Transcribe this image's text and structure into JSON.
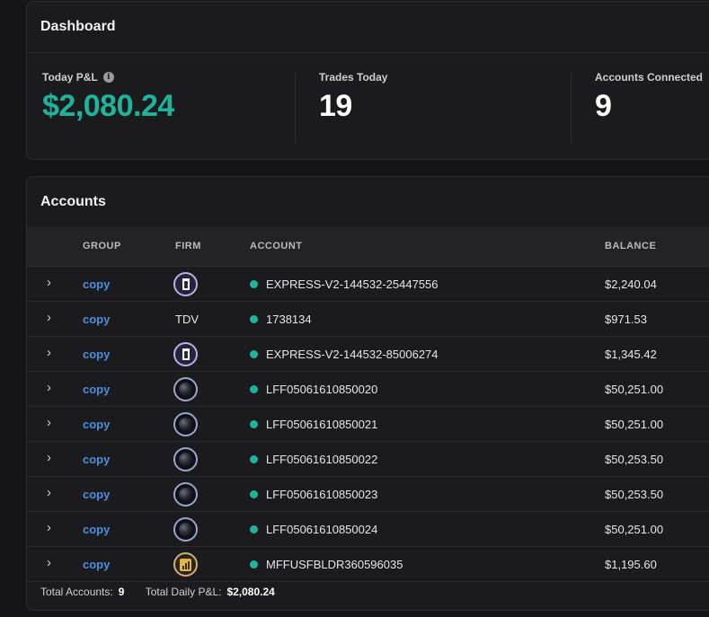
{
  "dashboard": {
    "title": "Dashboard",
    "today_pnl": {
      "label": "Today P&L",
      "value": "$2,080.24"
    },
    "trades_today": {
      "label": "Trades Today",
      "value": "19"
    },
    "accounts_connected": {
      "label": "Accounts Connected",
      "value": "9"
    }
  },
  "accounts": {
    "title": "Accounts",
    "columns": {
      "group": "GROUP",
      "firm": "FIRM",
      "account": "ACCOUNT",
      "balance": "BALANCE"
    },
    "rows": [
      {
        "group": "copy",
        "firm_icon": "x-shield-logo",
        "account": "EXPRESS-V2-144532-25447556",
        "balance": "$2,240.04"
      },
      {
        "group": "copy",
        "firm_text": "TDV",
        "account": "1738134",
        "balance": "$971.53"
      },
      {
        "group": "copy",
        "firm_icon": "x-shield-logo",
        "account": "EXPRESS-V2-144532-85006274",
        "balance": "$1,345.42"
      },
      {
        "group": "copy",
        "firm_icon": "black-sphere-logo",
        "account": "LFF05061610850020",
        "balance": "$50,251.00"
      },
      {
        "group": "copy",
        "firm_icon": "black-sphere-logo",
        "account": "LFF05061610850021",
        "balance": "$50,251.00"
      },
      {
        "group": "copy",
        "firm_icon": "black-sphere-logo",
        "account": "LFF05061610850022",
        "balance": "$50,253.50"
      },
      {
        "group": "copy",
        "firm_icon": "black-sphere-logo",
        "account": "LFF05061610850023",
        "balance": "$50,253.50"
      },
      {
        "group": "copy",
        "firm_icon": "black-sphere-logo",
        "account": "LFF05061610850024",
        "balance": "$50,251.00"
      },
      {
        "group": "copy",
        "firm_icon": "gold-chart-logo",
        "account": "MFFUSFBLDR360596035",
        "balance": "$1,195.60"
      }
    ],
    "footer": {
      "total_accounts_label": "Total Accounts:",
      "total_accounts_value": "9",
      "total_pnl_label": "Total Daily P&L:",
      "total_pnl_value": "$2,080.24"
    }
  },
  "colors": {
    "pnl_green": "#1fb39d",
    "link_blue": "#4b8fe0",
    "status_dot": "#1fb39d"
  }
}
